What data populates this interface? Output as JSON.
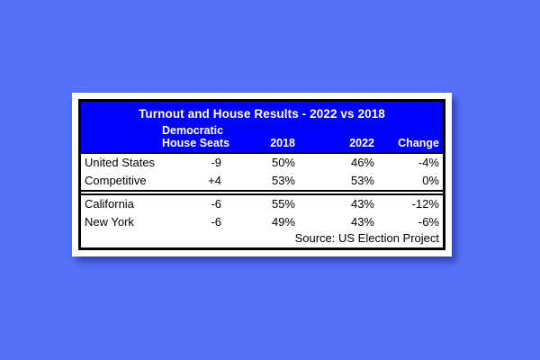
{
  "page": {
    "background_color": "#5571fa",
    "header_color": "#0101fe",
    "shadow_color": "#3a50c0"
  },
  "table": {
    "title": "Turnout and House Results - 2022 vs 2018",
    "col_seats_line1": "Democratic",
    "col_seats_line2": "House Seats",
    "col_2018": "2018",
    "col_2022": "2022",
    "col_change": "Change",
    "sections": [
      {
        "rows": [
          {
            "label": "United States",
            "seats": "-9",
            "y2018": "50%",
            "y2022": "46%",
            "change": "-4%"
          },
          {
            "label": "Competitive",
            "seats": "+4",
            "y2018": "53%",
            "y2022": "53%",
            "change": "0%"
          }
        ]
      },
      {
        "rows": [
          {
            "label": "California",
            "seats": "-6",
            "y2018": "55%",
            "y2022": "43%",
            "change": "-12%"
          },
          {
            "label": "New York",
            "seats": "-6",
            "y2018": "49%",
            "y2022": "43%",
            "change": "-6%"
          }
        ]
      }
    ],
    "source": "Source: US Election Project"
  },
  "chart_data": {
    "type": "table",
    "title": "Turnout and House Results - 2022 vs 2018",
    "columns": [
      "",
      "Democratic House Seats",
      "2018",
      "2022",
      "Change"
    ],
    "rows": [
      [
        "United States",
        "-9",
        "50%",
        "46%",
        "-4%"
      ],
      [
        "Competitive",
        "+4",
        "53%",
        "53%",
        "0%"
      ],
      [
        "California",
        "-6",
        "55%",
        "43%",
        "-12%"
      ],
      [
        "New York",
        "-6",
        "49%",
        "43%",
        "-6%"
      ]
    ],
    "source": "Source: US Election Project",
    "layout": {
      "sections": [
        [
          "United States",
          "Competitive"
        ],
        [
          "California",
          "New York"
        ]
      ],
      "header_bg": "#0101fe",
      "header_text_color": "#ffffff"
    }
  }
}
